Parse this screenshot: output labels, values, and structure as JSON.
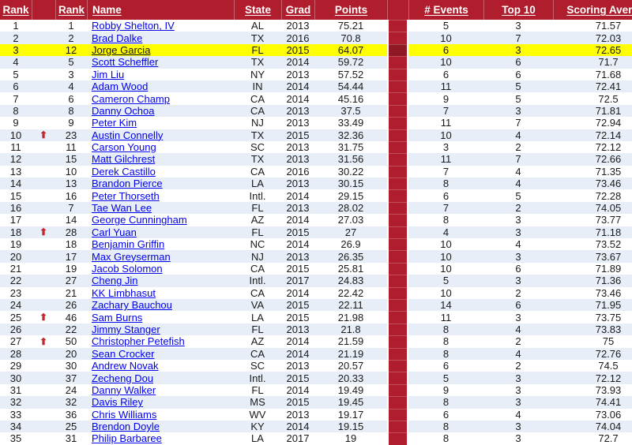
{
  "colors": {
    "header_red": "#B01E2E",
    "band_red": "#B01E2E",
    "band_red_highlight": "#8F1A26",
    "stripe_blue": "#E7EEF7",
    "highlight_yellow": "#FFFF00",
    "link_blue": "#0000EE",
    "highlight_link_color": "#121220",
    "arrow_red": "#C1272D",
    "text_color": "#1A1A1A"
  },
  "icons": {
    "rank_up_arrow": "⬆"
  },
  "table": {
    "columns": {
      "rank_current": "Rank",
      "rank_previous": "Rank",
      "name": "Name",
      "state": "State",
      "grad": "Grad",
      "points": "Points",
      "events": "# Events",
      "top10": "Top 10",
      "scoring_average": "Scoring Average"
    },
    "rows": [
      {
        "rank": "1",
        "up": false,
        "prev": "1",
        "name": "Robby Shelton, IV",
        "state": "AL",
        "grad": "2013",
        "points": "75.21",
        "events": "5",
        "top10": "3",
        "scoring": "71.57",
        "highlight": false
      },
      {
        "rank": "2",
        "up": false,
        "prev": "2",
        "name": "Brad Dalke",
        "state": "TX",
        "grad": "2016",
        "points": "70.8",
        "events": "10",
        "top10": "7",
        "scoring": "72.03",
        "highlight": false
      },
      {
        "rank": "3",
        "up": false,
        "prev": "12",
        "name": "Jorge Garcia",
        "state": "FL",
        "grad": "2015",
        "points": "64.07",
        "events": "6",
        "top10": "3",
        "scoring": "72.65",
        "highlight": true
      },
      {
        "rank": "4",
        "up": false,
        "prev": "5",
        "name": "Scott Scheffler",
        "state": "TX",
        "grad": "2014",
        "points": "59.72",
        "events": "10",
        "top10": "6",
        "scoring": "71.7",
        "highlight": false
      },
      {
        "rank": "5",
        "up": false,
        "prev": "3",
        "name": "Jim Liu",
        "state": "NY",
        "grad": "2013",
        "points": "57.52",
        "events": "6",
        "top10": "6",
        "scoring": "71.68",
        "highlight": false
      },
      {
        "rank": "6",
        "up": false,
        "prev": "4",
        "name": "Adam Wood",
        "state": "IN",
        "grad": "2014",
        "points": "54.44",
        "events": "11",
        "top10": "5",
        "scoring": "72.41",
        "highlight": false
      },
      {
        "rank": "7",
        "up": false,
        "prev": "6",
        "name": "Cameron Champ",
        "state": "CA",
        "grad": "2014",
        "points": "45.16",
        "events": "9",
        "top10": "5",
        "scoring": "72.5",
        "highlight": false
      },
      {
        "rank": "8",
        "up": false,
        "prev": "8",
        "name": "Danny Ochoa",
        "state": "CA",
        "grad": "2013",
        "points": "37.5",
        "events": "7",
        "top10": "3",
        "scoring": "71.81",
        "highlight": false
      },
      {
        "rank": "9",
        "up": false,
        "prev": "9",
        "name": "Peter Kim",
        "state": "NJ",
        "grad": "2013",
        "points": "33.49",
        "events": "11",
        "top10": "7",
        "scoring": "72.94",
        "highlight": false
      },
      {
        "rank": "10",
        "up": true,
        "prev": "23",
        "name": "Austin Connelly",
        "state": "TX",
        "grad": "2015",
        "points": "32.36",
        "events": "10",
        "top10": "4",
        "scoring": "72.14",
        "highlight": false
      },
      {
        "rank": "11",
        "up": false,
        "prev": "11",
        "name": "Carson Young",
        "state": "SC",
        "grad": "2013",
        "points": "31.75",
        "events": "3",
        "top10": "2",
        "scoring": "72.12",
        "highlight": false
      },
      {
        "rank": "12",
        "up": false,
        "prev": "15",
        "name": "Matt Gilchrest",
        "state": "TX",
        "grad": "2013",
        "points": "31.56",
        "events": "11",
        "top10": "7",
        "scoring": "72.66",
        "highlight": false
      },
      {
        "rank": "13",
        "up": false,
        "prev": "10",
        "name": "Derek Castillo",
        "state": "CA",
        "grad": "2016",
        "points": "30.22",
        "events": "7",
        "top10": "4",
        "scoring": "71.35",
        "highlight": false
      },
      {
        "rank": "14",
        "up": false,
        "prev": "13",
        "name": "Brandon Pierce",
        "state": "LA",
        "grad": "2013",
        "points": "30.15",
        "events": "8",
        "top10": "4",
        "scoring": "73.46",
        "highlight": false
      },
      {
        "rank": "15",
        "up": false,
        "prev": "16",
        "name": "Peter Thorseth",
        "state": "Intl.",
        "grad": "2014",
        "points": "29.15",
        "events": "6",
        "top10": "5",
        "scoring": "72.28",
        "highlight": false
      },
      {
        "rank": "16",
        "up": false,
        "prev": "7",
        "name": "Tae Wan Lee",
        "state": "FL",
        "grad": "2013",
        "points": "28.02",
        "events": "7",
        "top10": "2",
        "scoring": "74.05",
        "highlight": false
      },
      {
        "rank": "17",
        "up": false,
        "prev": "14",
        "name": "George Cunningham",
        "state": "AZ",
        "grad": "2014",
        "points": "27.03",
        "events": "8",
        "top10": "3",
        "scoring": "73.77",
        "highlight": false
      },
      {
        "rank": "18",
        "up": true,
        "prev": "28",
        "name": "Carl Yuan",
        "state": "FL",
        "grad": "2015",
        "points": "27",
        "events": "4",
        "top10": "3",
        "scoring": "71.18",
        "highlight": false
      },
      {
        "rank": "19",
        "up": false,
        "prev": "18",
        "name": "Benjamin Griffin",
        "state": "NC",
        "grad": "2014",
        "points": "26.9",
        "events": "10",
        "top10": "4",
        "scoring": "73.52",
        "highlight": false
      },
      {
        "rank": "20",
        "up": false,
        "prev": "17",
        "name": "Max Greyserman",
        "state": "NJ",
        "grad": "2013",
        "points": "26.35",
        "events": "10",
        "top10": "3",
        "scoring": "73.67",
        "highlight": false
      },
      {
        "rank": "21",
        "up": false,
        "prev": "19",
        "name": "Jacob Solomon",
        "state": "CA",
        "grad": "2015",
        "points": "25.81",
        "events": "10",
        "top10": "6",
        "scoring": "71.89",
        "highlight": false
      },
      {
        "rank": "22",
        "up": false,
        "prev": "27",
        "name": "Cheng Jin",
        "state": "Intl.",
        "grad": "2017",
        "points": "24.83",
        "events": "5",
        "top10": "3",
        "scoring": "71.36",
        "highlight": false
      },
      {
        "rank": "23",
        "up": false,
        "prev": "21",
        "name": "KK Limbhasut",
        "state": "CA",
        "grad": "2014",
        "points": "22.42",
        "events": "10",
        "top10": "2",
        "scoring": "73.46",
        "highlight": false
      },
      {
        "rank": "24",
        "up": false,
        "prev": "26",
        "name": "Zachary Bauchou",
        "state": "VA",
        "grad": "2015",
        "points": "22.11",
        "events": "14",
        "top10": "6",
        "scoring": "71.95",
        "highlight": false
      },
      {
        "rank": "25",
        "up": true,
        "prev": "46",
        "name": "Sam Burns",
        "state": "LA",
        "grad": "2015",
        "points": "21.98",
        "events": "11",
        "top10": "3",
        "scoring": "73.75",
        "highlight": false
      },
      {
        "rank": "26",
        "up": false,
        "prev": "22",
        "name": "Jimmy Stanger",
        "state": "FL",
        "grad": "2013",
        "points": "21.8",
        "events": "8",
        "top10": "4",
        "scoring": "73.83",
        "highlight": false
      },
      {
        "rank": "27",
        "up": true,
        "prev": "50",
        "name": "Christopher Petefish",
        "state": "AZ",
        "grad": "2014",
        "points": "21.59",
        "events": "8",
        "top10": "2",
        "scoring": "75",
        "highlight": false
      },
      {
        "rank": "28",
        "up": false,
        "prev": "20",
        "name": "Sean Crocker",
        "state": "CA",
        "grad": "2014",
        "points": "21.19",
        "events": "8",
        "top10": "4",
        "scoring": "72.76",
        "highlight": false
      },
      {
        "rank": "29",
        "up": false,
        "prev": "30",
        "name": "Andrew Novak",
        "state": "SC",
        "grad": "2013",
        "points": "20.57",
        "events": "6",
        "top10": "2",
        "scoring": "74.5",
        "highlight": false
      },
      {
        "rank": "30",
        "up": false,
        "prev": "37",
        "name": "Zecheng Dou",
        "state": "Intl.",
        "grad": "2015",
        "points": "20.33",
        "events": "5",
        "top10": "3",
        "scoring": "72.12",
        "highlight": false
      },
      {
        "rank": "31",
        "up": false,
        "prev": "24",
        "name": "Danny Walker",
        "state": "FL",
        "grad": "2014",
        "points": "19.49",
        "events": "9",
        "top10": "3",
        "scoring": "73.93",
        "highlight": false
      },
      {
        "rank": "32",
        "up": false,
        "prev": "32",
        "name": "Davis Riley",
        "state": "MS",
        "grad": "2015",
        "points": "19.45",
        "events": "8",
        "top10": "3",
        "scoring": "74.41",
        "highlight": false
      },
      {
        "rank": "33",
        "up": false,
        "prev": "36",
        "name": "Chris Williams",
        "state": "WV",
        "grad": "2013",
        "points": "19.17",
        "events": "6",
        "top10": "4",
        "scoring": "73.06",
        "highlight": false
      },
      {
        "rank": "34",
        "up": false,
        "prev": "25",
        "name": "Brendon Doyle",
        "state": "KY",
        "grad": "2014",
        "points": "19.15",
        "events": "8",
        "top10": "3",
        "scoring": "74.04",
        "highlight": false
      },
      {
        "rank": "35",
        "up": false,
        "prev": "31",
        "name": "Philip Barbaree",
        "state": "LA",
        "grad": "2017",
        "points": "19",
        "events": "8",
        "top10": "3",
        "scoring": "72.7",
        "highlight": false
      }
    ]
  }
}
